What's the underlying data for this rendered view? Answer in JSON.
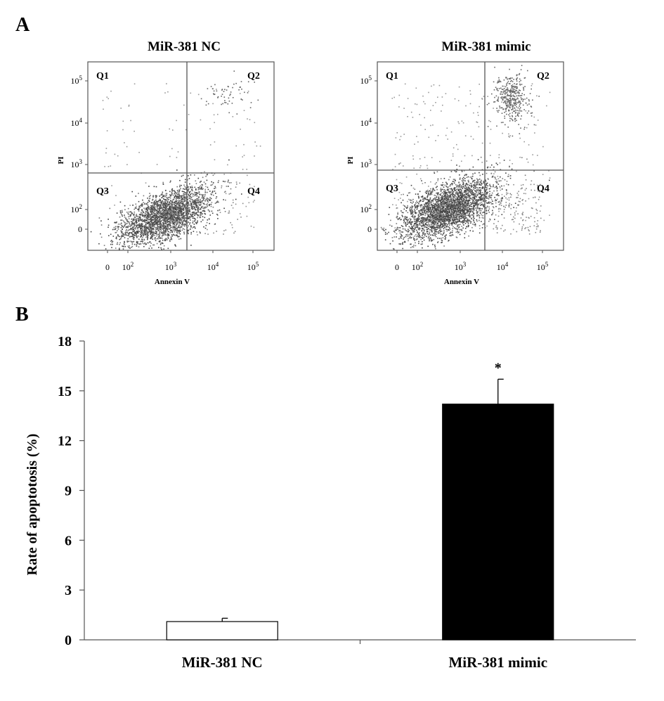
{
  "panel_a": {
    "letter": "A"
  },
  "panel_b": {
    "letter": "B"
  },
  "flow_plots": [
    {
      "title": "MiR-381 NC",
      "x_label": "Annexin V",
      "y_label": "PI",
      "quadrants": [
        "Q1",
        "Q2",
        "Q3",
        "Q4"
      ],
      "x_ticks": [
        "0",
        "10^2",
        "10^3",
        "10^4",
        "10^5"
      ],
      "y_ticks": [
        "0",
        "10^2",
        "10^3",
        "10^4",
        "10^5"
      ]
    },
    {
      "title": "MiR-381 mimic",
      "x_label": "Annexin V",
      "y_label": "PI",
      "quadrants": [
        "Q1",
        "Q2",
        "Q3",
        "Q4"
      ],
      "x_ticks": [
        "0",
        "10^2",
        "10^3",
        "10^4",
        "10^5"
      ],
      "y_ticks": [
        "0",
        "10^2",
        "10^3",
        "10^4",
        "10^5"
      ]
    }
  ],
  "chart_data": {
    "type": "bar",
    "categories": [
      "MiR-381 NC",
      "MiR-381 mimic"
    ],
    "values": [
      1.1,
      14.2
    ],
    "errors": [
      0.2,
      1.5
    ],
    "colors": [
      "#ffffff",
      "#000000"
    ],
    "significance": [
      "",
      "*"
    ],
    "ylabel": "Rate of apoptotosis (%)",
    "ylim": [
      0,
      18
    ],
    "yticks": [
      0,
      3,
      6,
      9,
      12,
      15,
      18
    ]
  }
}
